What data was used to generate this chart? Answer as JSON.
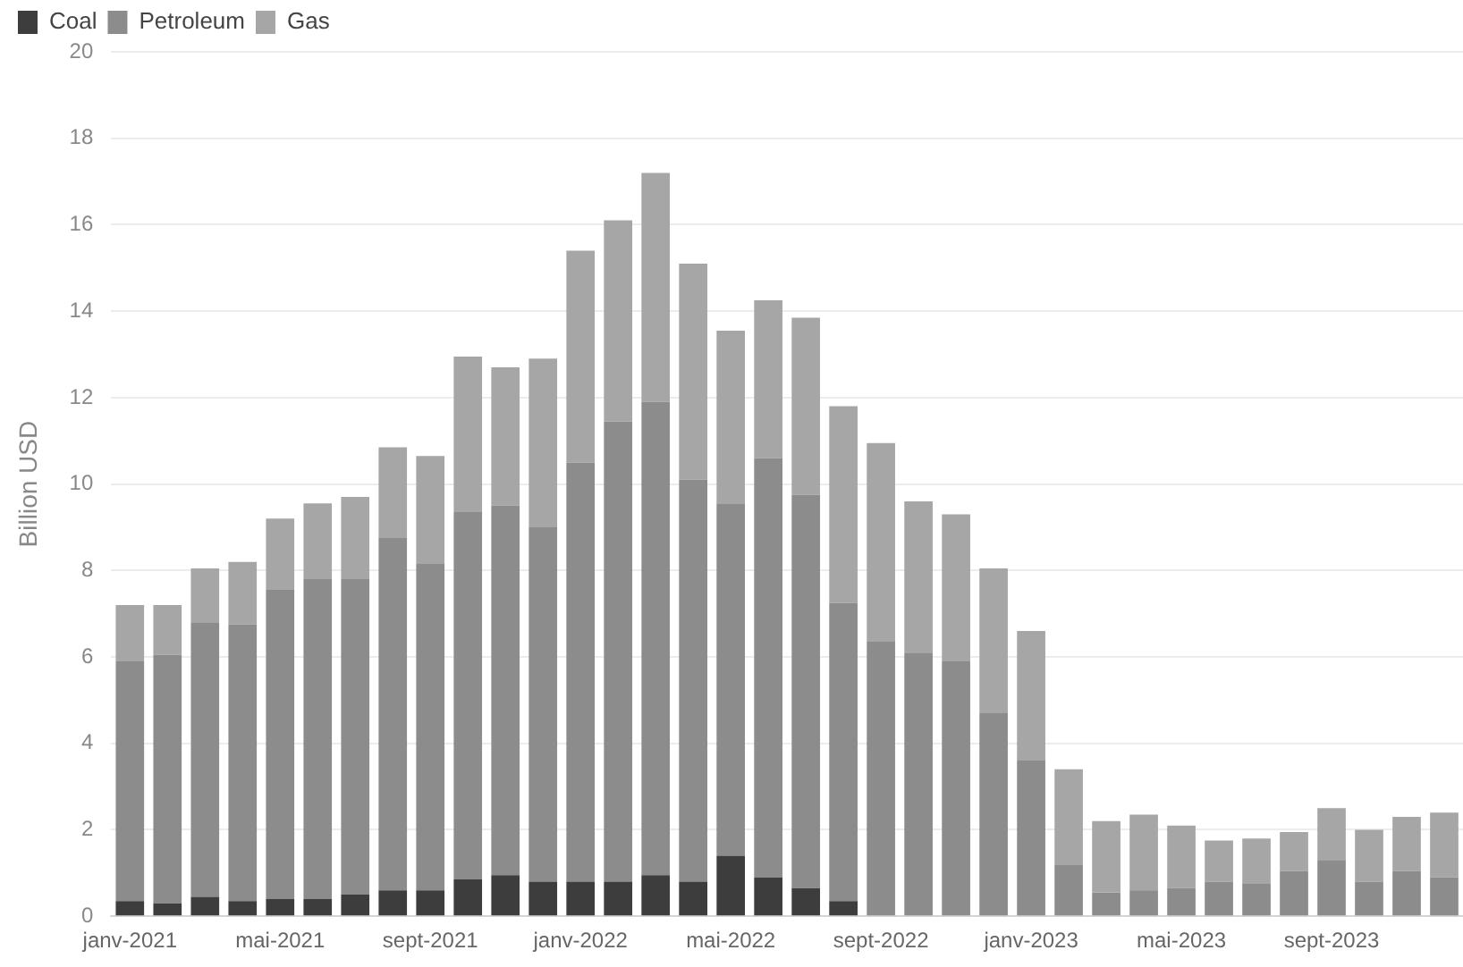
{
  "chart_data": {
    "type": "bar",
    "stacked": true,
    "ylabel": "Billion USD",
    "categories": [
      "janv-2021",
      null,
      null,
      null,
      "mai-2021",
      null,
      null,
      null,
      "sept-2021",
      null,
      null,
      null,
      "janv-2022",
      null,
      null,
      null,
      "mai-2022",
      null,
      null,
      null,
      "sept-2022",
      null,
      null,
      null,
      "janv-2023",
      null,
      null,
      null,
      "mai-2023",
      null,
      null,
      null,
      "sept-2023",
      null,
      null,
      null
    ],
    "series": [
      {
        "name": "Coal",
        "color": "#3d3d3d",
        "values": [
          0.35,
          0.3,
          0.45,
          0.35,
          0.4,
          0.4,
          0.5,
          0.6,
          0.6,
          0.85,
          0.95,
          0.8,
          0.8,
          0.8,
          0.95,
          0.8,
          1.4,
          0.9,
          0.65,
          0.35,
          0,
          0,
          0,
          0,
          0,
          0,
          0,
          0,
          0,
          0,
          0,
          0,
          0,
          0,
          0,
          0
        ]
      },
      {
        "name": "Petroleum",
        "color": "#8c8c8c",
        "values": [
          5.55,
          5.75,
          6.35,
          6.4,
          7.15,
          7.4,
          7.3,
          8.15,
          7.55,
          8.5,
          8.55,
          8.2,
          9.7,
          10.65,
          10.95,
          9.3,
          8.15,
          9.7,
          9.1,
          6.9,
          6.35,
          6.1,
          5.9,
          4.7,
          3.6,
          1.2,
          0.55,
          0.6,
          0.65,
          0.8,
          0.75,
          1.05,
          1.3,
          0.8,
          1.05,
          0.9
        ]
      },
      {
        "name": "Gas",
        "color": "#a6a6a6",
        "values": [
          1.3,
          1.15,
          1.25,
          1.45,
          1.65,
          1.75,
          1.9,
          2.1,
          2.5,
          3.6,
          3.2,
          3.9,
          4.9,
          4.65,
          5.3,
          5.0,
          4.0,
          3.65,
          4.1,
          4.55,
          4.6,
          3.5,
          3.4,
          3.35,
          3.0,
          2.2,
          1.65,
          1.75,
          1.45,
          0.95,
          1.05,
          0.9,
          1.2,
          1.2,
          1.25,
          1.5
        ]
      }
    ],
    "ylim": [
      0,
      20
    ],
    "yticks": [
      0,
      2,
      4,
      6,
      8,
      10,
      12,
      14,
      16,
      18,
      20
    ],
    "grid": "y",
    "legend": "top left"
  }
}
